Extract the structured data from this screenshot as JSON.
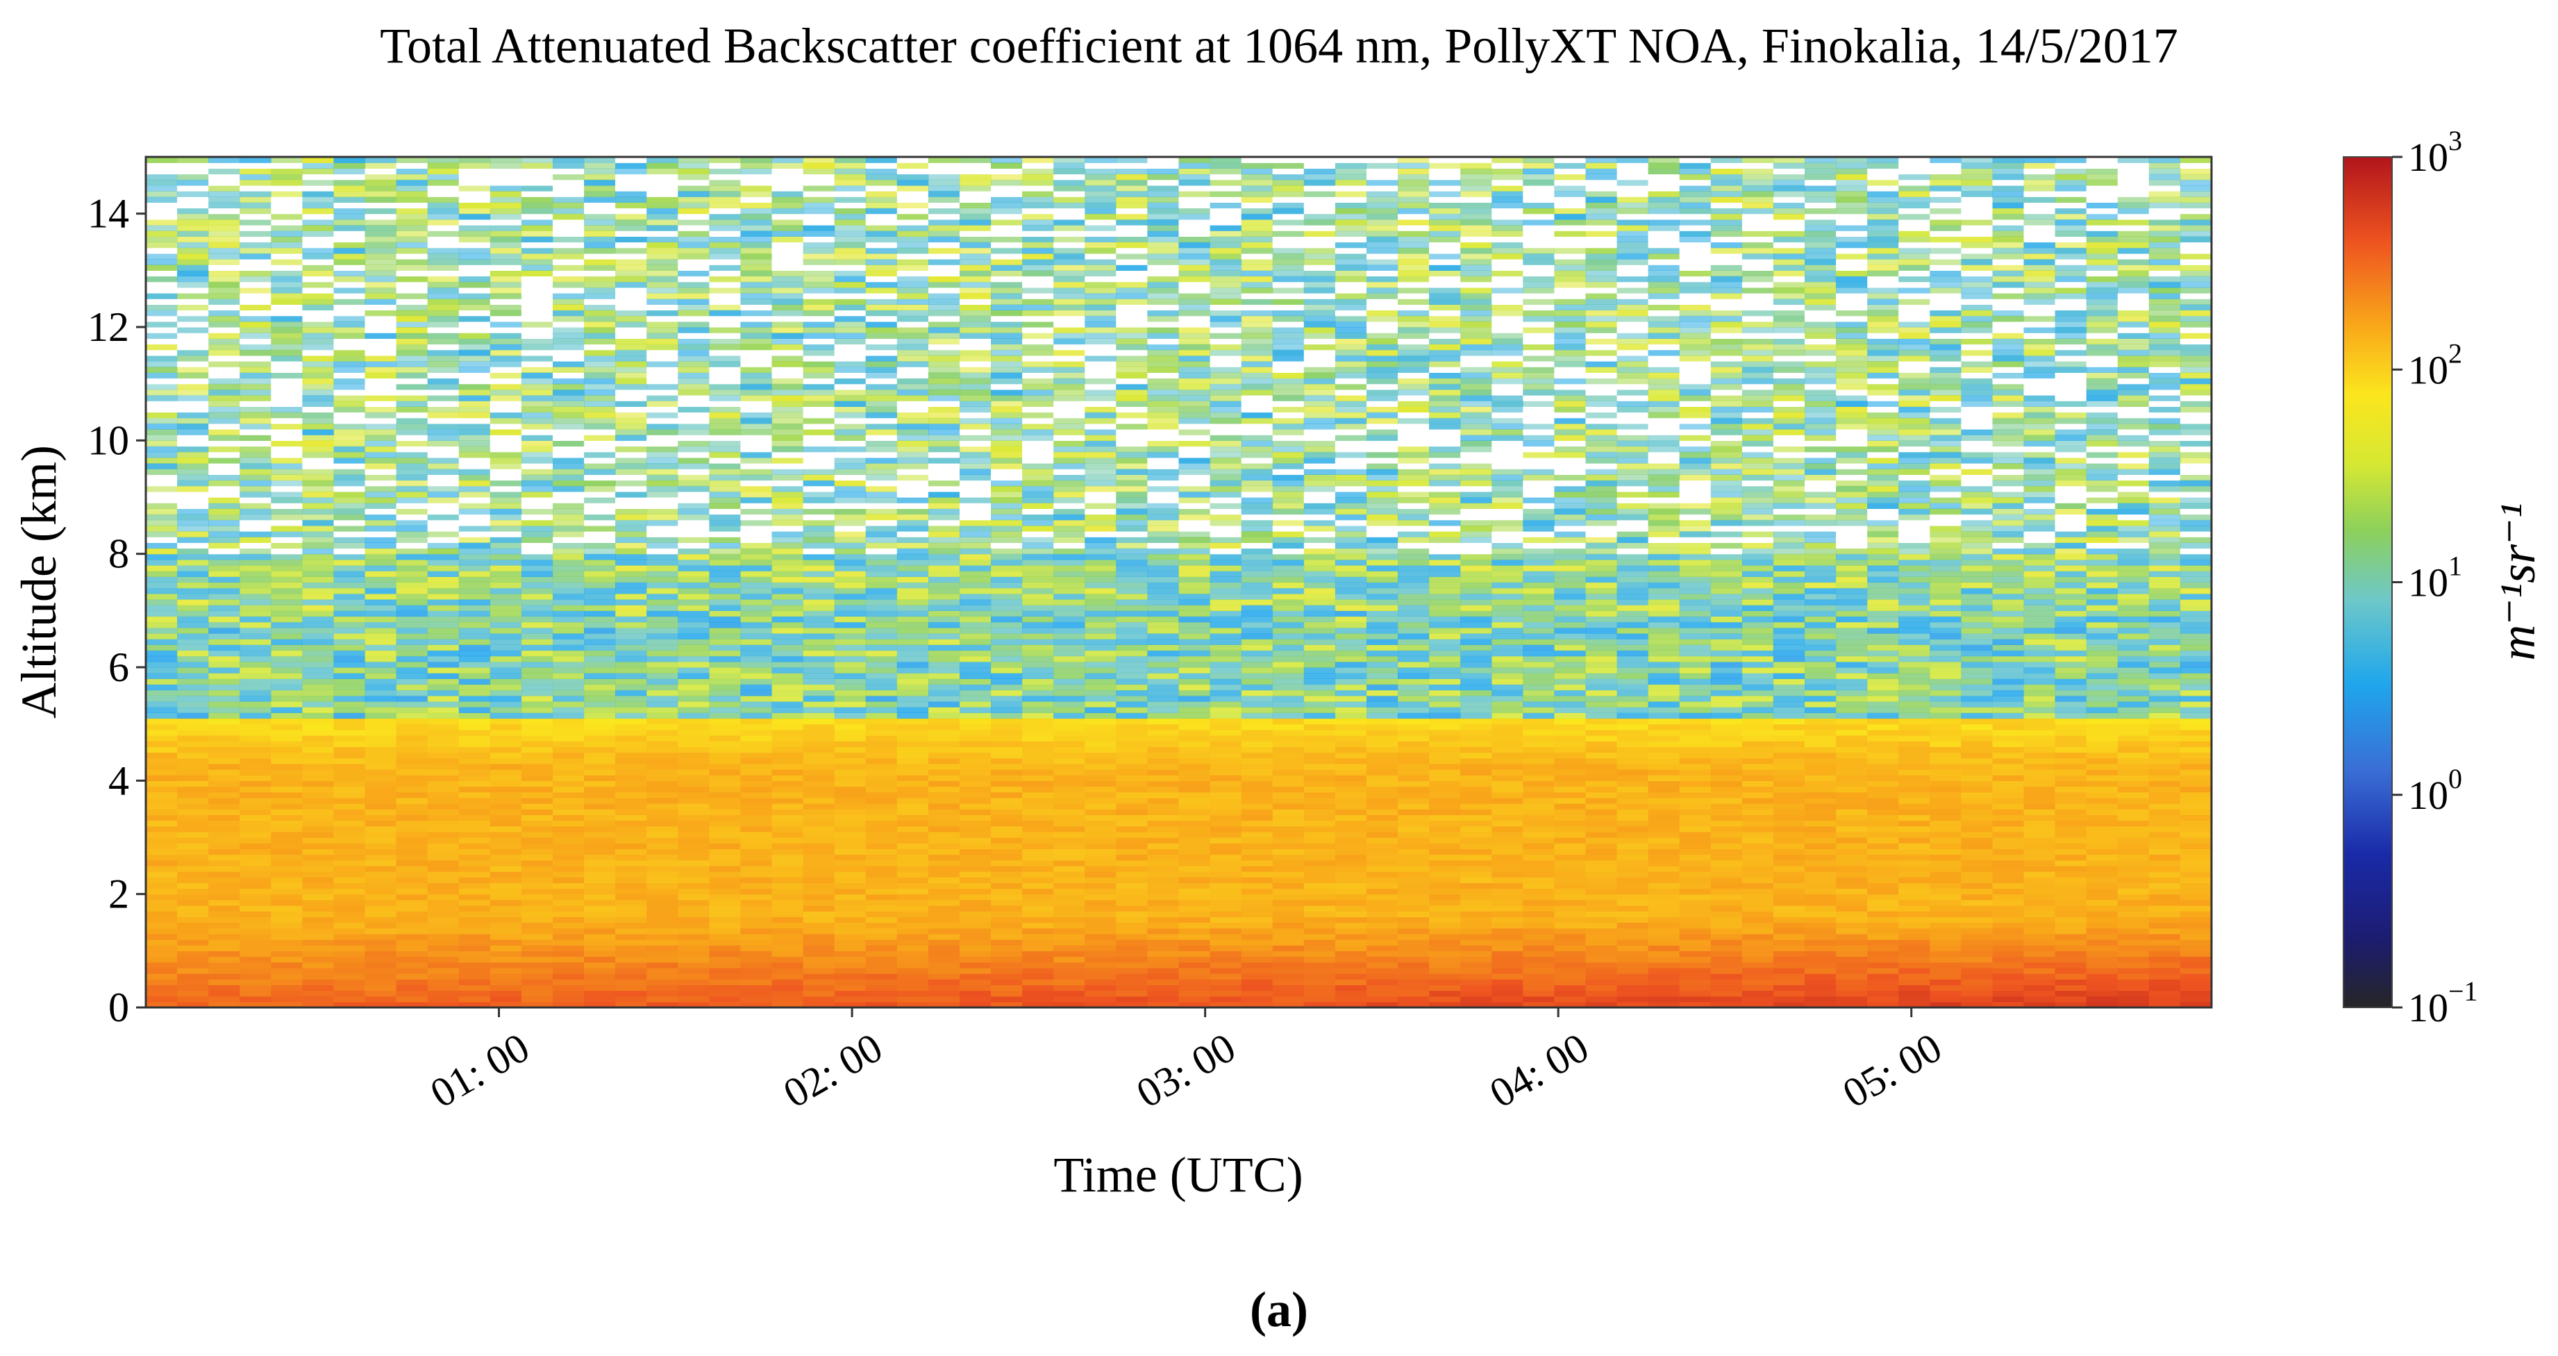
{
  "chart_data": {
    "type": "heatmap",
    "title": "Total Attenuated Backscatter coefficient at 1064 nm, PollyXT NOA, Finokalia, 14/5/2017",
    "xlabel": "Time (UTC)",
    "ylabel": "Altitude (km)",
    "x_ticks": [
      "01: 00",
      "02: 00",
      "03: 00",
      "04: 00",
      "05: 00"
    ],
    "x_tick_hours": [
      1,
      2,
      3,
      4,
      5
    ],
    "xlim_hours": [
      0.0,
      5.85
    ],
    "y_ticks": [
      "0",
      "2",
      "4",
      "6",
      "8",
      "10",
      "12",
      "14"
    ],
    "y_tick_values": [
      0,
      2,
      4,
      6,
      8,
      10,
      12,
      14
    ],
    "ylim_km": [
      0,
      15
    ],
    "colorbar": {
      "label": "m⁻¹sr⁻¹",
      "scale": "log",
      "range": [
        0.1,
        1000
      ],
      "ticks": [
        {
          "value": 1000,
          "base": "10",
          "exp": "3"
        },
        {
          "value": 100,
          "base": "10",
          "exp": "2"
        },
        {
          "value": 10,
          "base": "10",
          "exp": "1"
        },
        {
          "value": 1,
          "base": "10",
          "exp": "0"
        },
        {
          "value": 0.1,
          "base": "10",
          "exp": "−1"
        }
      ]
    },
    "features": {
      "aerosol_layer_top_km": 5.1,
      "near_surface_max_km": [
        0,
        1.5
      ],
      "approx_log_backscatter": [
        {
          "altitude_km": [
            0,
            1
          ],
          "value_range": [
            200,
            1000
          ]
        },
        {
          "altitude_km": [
            1,
            5
          ],
          "value_range": [
            100,
            300
          ]
        },
        {
          "altitude_km": [
            5,
            8
          ],
          "value_range": [
            1,
            30
          ]
        },
        {
          "altitude_km": [
            8,
            15
          ],
          "value_range": [
            1,
            60
          ]
        }
      ]
    }
  },
  "caption": "(a)"
}
